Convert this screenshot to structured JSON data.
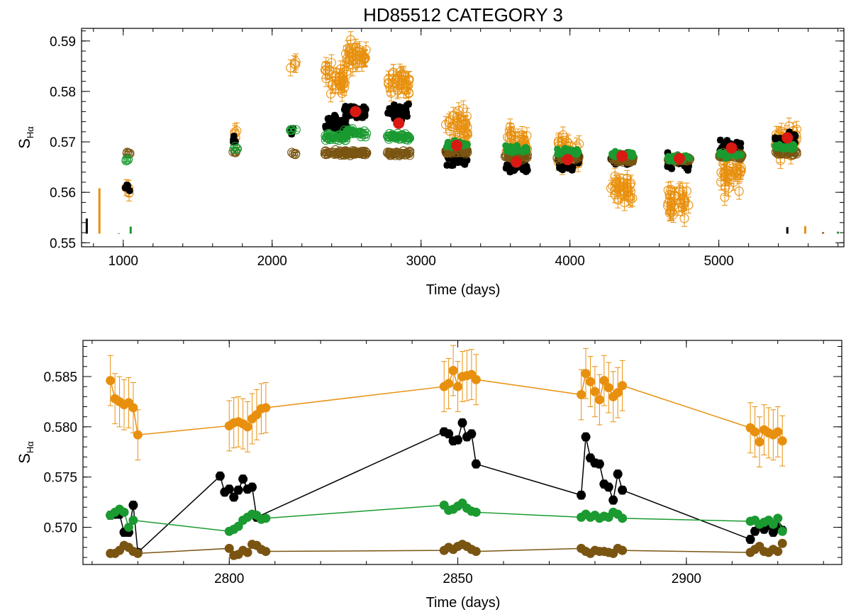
{
  "title": "HD85512 CATEGORY 3",
  "colors": {
    "black": "#000000",
    "orange": "#E8900E",
    "green": "#1A9A30",
    "brown": "#7A5512",
    "red": "#D81A12"
  },
  "chart_data": [
    {
      "type": "scatter",
      "id": "top",
      "xlabel": "Time (days)",
      "ylabel": "SHα",
      "ylabel_main": "S",
      "ylabel_sub": "Hα",
      "xlim": [
        720,
        5840
      ],
      "ylim": [
        0.5492,
        0.5925
      ],
      "xticks": [
        1000,
        2000,
        3000,
        4000,
        5000
      ],
      "yticks": [
        0.55,
        0.56,
        0.57,
        0.58,
        0.59
      ],
      "tick_labels_x": [
        "1000",
        "2000",
        "3000",
        "4000",
        "5000"
      ],
      "tick_labels_y": [
        "0.55",
        "0.56",
        "0.57",
        "0.58",
        "0.59"
      ],
      "clusters": [
        {
          "t": 1030,
          "black": 0.561,
          "orange": 0.56,
          "green": 0.5665,
          "brown": 0.5678
        },
        {
          "t": 1750,
          "black": 0.5702,
          "orange": 0.5712,
          "green": 0.5688,
          "brown": 0.568
        },
        {
          "t": 2140,
          "black": 0.5722,
          "orange": 0.5858,
          "green": 0.5722,
          "brown": 0.5677
        },
        {
          "t": 2430,
          "black": 0.5735,
          "orange": 0.583,
          "green": 0.571,
          "brown": 0.5678
        },
        {
          "t": 2560,
          "black": 0.576,
          "orange": 0.587,
          "green": 0.5718,
          "brown": 0.5678
        },
        {
          "t": 2850,
          "black": 0.576,
          "orange": 0.582,
          "green": 0.571,
          "brown": 0.5677
        },
        {
          "t": 3240,
          "black": 0.5665,
          "orange": 0.573,
          "green": 0.5695,
          "brown": 0.568
        },
        {
          "t": 3640,
          "black": 0.5655,
          "orange": 0.57,
          "green": 0.5685,
          "brown": 0.567
        },
        {
          "t": 3990,
          "black": 0.566,
          "orange": 0.568,
          "green": 0.568,
          "brown": 0.567
        },
        {
          "t": 4350,
          "black": 0.5665,
          "orange": 0.561,
          "green": 0.5675,
          "brown": 0.5665
        },
        {
          "t": 4730,
          "black": 0.566,
          "orange": 0.558,
          "green": 0.5668,
          "brown": 0.5665
        },
        {
          "t": 5080,
          "black": 0.569,
          "orange": 0.563,
          "green": 0.5675,
          "brown": 0.5672
        },
        {
          "t": 5450,
          "black": 0.57,
          "orange": 0.57,
          "green": 0.569,
          "brown": 0.568
        }
      ],
      "means": [
        {
          "x": 2560,
          "y": 0.576
        },
        {
          "x": 2850,
          "y": 0.5737
        },
        {
          "x": 3240,
          "y": 0.5693
        },
        {
          "x": 3640,
          "y": 0.566
        },
        {
          "x": 3985,
          "y": 0.5665
        },
        {
          "x": 4350,
          "y": 0.5672
        },
        {
          "x": 4735,
          "y": 0.5667
        },
        {
          "x": 5085,
          "y": 0.5688
        },
        {
          "x": 5460,
          "y": 0.5708
        }
      ],
      "scale_bars": [
        {
          "x": 755,
          "y0": 0.5518,
          "y1": 0.5548,
          "series": "black"
        },
        {
          "x": 840,
          "y0": 0.5518,
          "y1": 0.5608,
          "series": "orange"
        },
        {
          "x": 970,
          "y0": 0.5518,
          "y1": 0.5519,
          "series": "brown"
        },
        {
          "x": 1050,
          "y0": 0.5518,
          "y1": 0.5532,
          "series": "green"
        },
        {
          "x": 5460,
          "y0": 0.5518,
          "y1": 0.5531,
          "series": "black"
        },
        {
          "x": 5580,
          "y0": 0.5518,
          "y1": 0.5533,
          "series": "orange"
        },
        {
          "x": 5700,
          "y0": 0.5518,
          "y1": 0.5521,
          "series": "brown"
        },
        {
          "x": 5800,
          "y0": 0.5518,
          "y1": 0.5522,
          "series": "green"
        }
      ]
    },
    {
      "type": "line",
      "id": "bottom",
      "xlabel": "Time (days)",
      "ylabel": "SHα",
      "ylabel_main": "S",
      "ylabel_sub": "Hα",
      "xlim": [
        2768,
        2934
      ],
      "ylim": [
        0.5663,
        0.5886
      ],
      "xticks": [
        2800,
        2850,
        2900
      ],
      "yticks": [
        0.57,
        0.575,
        0.58,
        0.585
      ],
      "tick_labels_x": [
        "2800",
        "2850",
        "2900"
      ],
      "tick_labels_y": [
        "0.570",
        "0.575",
        "0.580",
        "0.585"
      ],
      "series": [
        {
          "name": "orange",
          "color_key": "orange",
          "err": 0.0025,
          "points": [
            [
              2774,
              0.5846
            ],
            [
              2775,
              0.5828
            ],
            [
              2776,
              0.5825
            ],
            [
              2777,
              0.5822
            ],
            [
              2778,
              0.5824
            ],
            [
              2779,
              0.5819
            ],
            [
              2780,
              0.5792
            ],
            [
              2800,
              0.5801
            ],
            [
              2801,
              0.5804
            ],
            [
              2802,
              0.5805
            ],
            [
              2803,
              0.5803
            ],
            [
              2804,
              0.58
            ],
            [
              2805,
              0.5808
            ],
            [
              2806,
              0.5812
            ],
            [
              2807,
              0.5818
            ],
            [
              2808,
              0.5819
            ],
            [
              2847,
              0.584
            ],
            [
              2848,
              0.5843
            ],
            [
              2849,
              0.5856
            ],
            [
              2850,
              0.584
            ],
            [
              2851,
              0.585
            ],
            [
              2852,
              0.5851
            ],
            [
              2853,
              0.5852
            ],
            [
              2854,
              0.5847
            ],
            [
              2877,
              0.5832
            ],
            [
              2878,
              0.5853
            ],
            [
              2879,
              0.5845
            ],
            [
              2880,
              0.5835
            ],
            [
              2881,
              0.5827
            ],
            [
              2882,
              0.5846
            ],
            [
              2883,
              0.5839
            ],
            [
              2884,
              0.583
            ],
            [
              2885,
              0.5834
            ],
            [
              2886,
              0.5841
            ],
            [
              2914,
              0.5799
            ],
            [
              2915,
              0.5795
            ],
            [
              2916,
              0.5785
            ],
            [
              2917,
              0.5797
            ],
            [
              2918,
              0.5794
            ],
            [
              2919,
              0.5792
            ],
            [
              2920,
              0.5795
            ],
            [
              2921,
              0.5786
            ]
          ]
        },
        {
          "name": "black",
          "color_key": "black",
          "err": 0.0004,
          "points": [
            [
              2774,
              0.5712
            ],
            [
              2775,
              0.5713
            ],
            [
              2776,
              0.5713
            ],
            [
              2777,
              0.5695
            ],
            [
              2778,
              0.5695
            ],
            [
              2779,
              0.5722
            ],
            [
              2780,
              0.5675
            ],
            [
              2798,
              0.5751
            ],
            [
              2799,
              0.5735
            ],
            [
              2800,
              0.5738
            ],
            [
              2801,
              0.573
            ],
            [
              2802,
              0.5737
            ],
            [
              2803,
              0.5748
            ],
            [
              2804,
              0.5738
            ],
            [
              2805,
              0.574
            ],
            [
              2806,
              0.571
            ],
            [
              2847,
              0.5795
            ],
            [
              2848,
              0.5793
            ],
            [
              2849,
              0.5786
            ],
            [
              2850,
              0.5787
            ],
            [
              2851,
              0.5804
            ],
            [
              2852,
              0.579
            ],
            [
              2853,
              0.5793
            ],
            [
              2854,
              0.5763
            ],
            [
              2877,
              0.5732
            ],
            [
              2878,
              0.579
            ],
            [
              2879,
              0.5769
            ],
            [
              2880,
              0.5764
            ],
            [
              2881,
              0.5763
            ],
            [
              2882,
              0.5743
            ],
            [
              2883,
              0.574
            ],
            [
              2884,
              0.5727
            ],
            [
              2885,
              0.5753
            ],
            [
              2886,
              0.5737
            ],
            [
              2914,
              0.5688
            ],
            [
              2915,
              0.5696
            ],
            [
              2916,
              0.5702
            ],
            [
              2917,
              0.5698
            ],
            [
              2918,
              0.5702
            ],
            [
              2919,
              0.5695
            ],
            [
              2920,
              0.57
            ],
            [
              2921,
              0.5697
            ]
          ]
        },
        {
          "name": "green",
          "color_key": "green",
          "err": 0.0002,
          "points": [
            [
              2774,
              0.5712
            ],
            [
              2775,
              0.5715
            ],
            [
              2776,
              0.5718
            ],
            [
              2777,
              0.5715
            ],
            [
              2778,
              0.57
            ],
            [
              2779,
              0.5707
            ],
            [
              2800,
              0.5696
            ],
            [
              2801,
              0.5698
            ],
            [
              2802,
              0.5701
            ],
            [
              2803,
              0.5707
            ],
            [
              2804,
              0.571
            ],
            [
              2805,
              0.5713
            ],
            [
              2806,
              0.5712
            ],
            [
              2807,
              0.5708
            ],
            [
              2808,
              0.5709
            ],
            [
              2847,
              0.5722
            ],
            [
              2848,
              0.5717
            ],
            [
              2849,
              0.5718
            ],
            [
              2850,
              0.5721
            ],
            [
              2851,
              0.5724
            ],
            [
              2852,
              0.5719
            ],
            [
              2853,
              0.5716
            ],
            [
              2854,
              0.5715
            ],
            [
              2877,
              0.571
            ],
            [
              2878,
              0.5713
            ],
            [
              2879,
              0.571
            ],
            [
              2880,
              0.5712
            ],
            [
              2881,
              0.5709
            ],
            [
              2882,
              0.5711
            ],
            [
              2883,
              0.571
            ],
            [
              2884,
              0.5715
            ],
            [
              2885,
              0.5713
            ],
            [
              2886,
              0.5709
            ],
            [
              2914,
              0.5706
            ],
            [
              2915,
              0.5707
            ],
            [
              2916,
              0.5703
            ],
            [
              2917,
              0.5705
            ],
            [
              2918,
              0.5707
            ],
            [
              2919,
              0.5703
            ],
            [
              2920,
              0.5709
            ],
            [
              2921,
              0.5696
            ]
          ]
        },
        {
          "name": "brown",
          "color_key": "brown",
          "err": 0.0003,
          "points": [
            [
              2774,
              0.5674
            ],
            [
              2775,
              0.5674
            ],
            [
              2776,
              0.5677
            ],
            [
              2777,
              0.5682
            ],
            [
              2778,
              0.568
            ],
            [
              2779,
              0.5676
            ],
            [
              2780,
              0.5674
            ],
            [
              2800,
              0.5679
            ],
            [
              2801,
              0.5672
            ],
            [
              2802,
              0.5673
            ],
            [
              2803,
              0.5677
            ],
            [
              2804,
              0.5675
            ],
            [
              2805,
              0.5683
            ],
            [
              2806,
              0.5682
            ],
            [
              2807,
              0.5678
            ],
            [
              2808,
              0.5676
            ],
            [
              2847,
              0.5677
            ],
            [
              2848,
              0.568
            ],
            [
              2849,
              0.5678
            ],
            [
              2850,
              0.5681
            ],
            [
              2851,
              0.5683
            ],
            [
              2852,
              0.5681
            ],
            [
              2853,
              0.5678
            ],
            [
              2854,
              0.5676
            ],
            [
              2877,
              0.5679
            ],
            [
              2878,
              0.5676
            ],
            [
              2879,
              0.5674
            ],
            [
              2880,
              0.5677
            ],
            [
              2881,
              0.5676
            ],
            [
              2882,
              0.5676
            ],
            [
              2883,
              0.5675
            ],
            [
              2884,
              0.5674
            ],
            [
              2885,
              0.5679
            ],
            [
              2886,
              0.5677
            ],
            [
              2914,
              0.5675
            ],
            [
              2915,
              0.5678
            ],
            [
              2916,
              0.5681
            ],
            [
              2917,
              0.5676
            ],
            [
              2918,
              0.5675
            ],
            [
              2919,
              0.5678
            ],
            [
              2920,
              0.5676
            ],
            [
              2921,
              0.5684
            ]
          ]
        }
      ]
    }
  ]
}
